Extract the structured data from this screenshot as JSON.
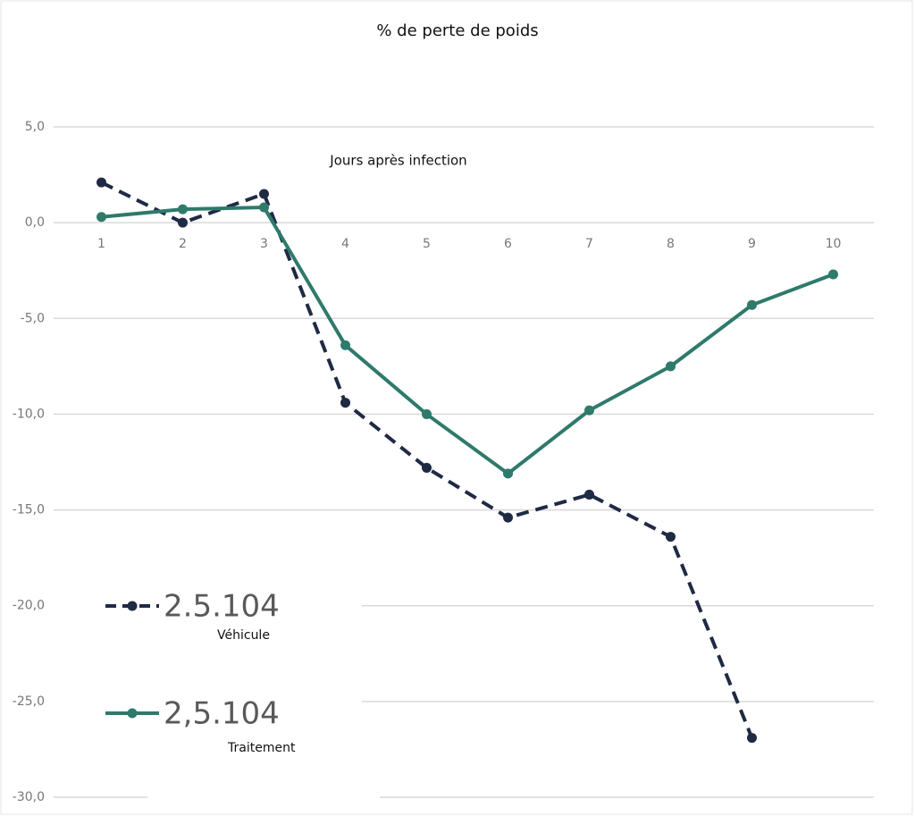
{
  "chart_data": {
    "type": "line",
    "title": "% de perte de poids",
    "x_label": "Jours après infection",
    "categories": [
      "1",
      "2",
      "3",
      "4",
      "5",
      "6",
      "7",
      "8",
      "9",
      "10"
    ],
    "series": [
      {
        "name": "Véhicule",
        "legend_text": "2.5.104",
        "color": "#1f2a44",
        "dashed": true,
        "values": [
          2.1,
          0.0,
          1.5,
          -9.4,
          -12.8,
          -15.4,
          -14.2,
          -16.4,
          -26.9,
          null
        ]
      },
      {
        "name": "Traitement",
        "legend_text": "2,5.104",
        "color": "#2e7a6b",
        "dashed": false,
        "values": [
          0.3,
          0.7,
          0.8,
          -6.4,
          -10.0,
          -13.1,
          -9.8,
          -7.5,
          -4.3,
          -2.7
        ]
      }
    ],
    "ylim": [
      -30,
      5
    ],
    "yticks": [
      {
        "value": 5,
        "label": "5,0"
      },
      {
        "value": 0,
        "label": "0,0"
      },
      {
        "value": -5,
        "label": "-5,0"
      },
      {
        "value": -10,
        "label": "-10,0"
      },
      {
        "value": -15,
        "label": "-15,0"
      },
      {
        "value": -20,
        "label": "-20,0"
      },
      {
        "value": -25,
        "label": "-25,0"
      },
      {
        "value": -30,
        "label": "-30,0"
      }
    ],
    "grid": true
  }
}
